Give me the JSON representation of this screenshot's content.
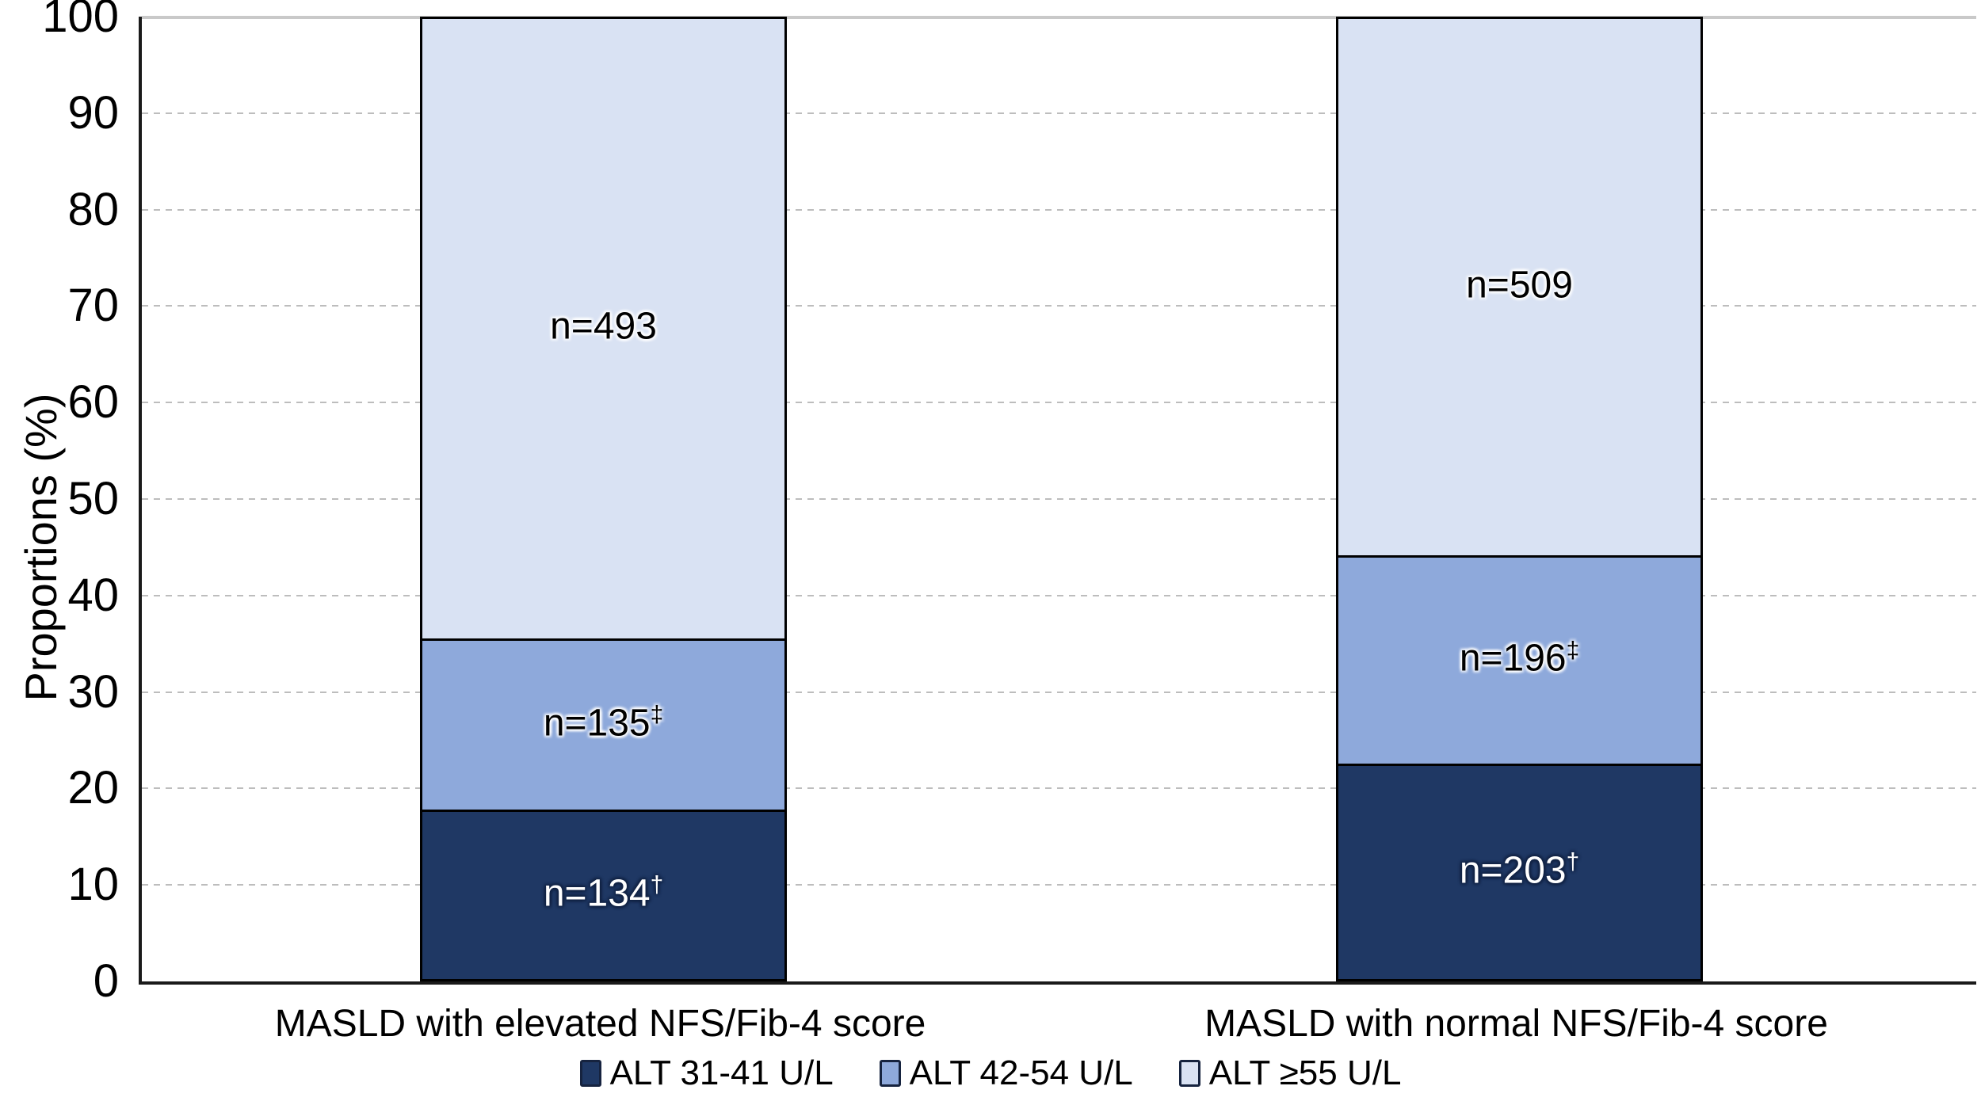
{
  "chart_data": {
    "type": "bar",
    "variant": "stacked-100pct",
    "title": "",
    "ylabel": "Proportions (%)",
    "xlabel": "",
    "ylim": [
      0,
      100
    ],
    "yticks": [
      0,
      10,
      20,
      30,
      40,
      50,
      60,
      70,
      80,
      90,
      100
    ],
    "grid": "horizontal, dashed at 10-90, solid at 100",
    "legend_position": "bottom",
    "categories": [
      "MASLD with elevated NFS/Fib-4 score",
      "MASLD with normal NFS/Fib-4 score"
    ],
    "series": [
      {
        "name": "ALT 31-41 U/L",
        "color": "#1F3864",
        "label_style": "white-on-dark",
        "values": [
          134,
          203
        ],
        "labels": [
          "n=134",
          "n=203"
        ],
        "label_suffix": "†"
      },
      {
        "name": "ALT 42-54 U/L",
        "color": "#8EA9DB",
        "label_style": "black-on-light",
        "values": [
          135,
          196
        ],
        "labels": [
          "n=135",
          "n=196"
        ],
        "label_suffix": "‡"
      },
      {
        "name": "ALT ≥55 U/L",
        "color": "#D9E2F3",
        "label_style": "black-on-light",
        "values": [
          493,
          509
        ],
        "labels": [
          "n=493",
          "n=509"
        ],
        "label_suffix": ""
      }
    ]
  },
  "legend": {
    "items": [
      {
        "label": "ALT 31-41 U/L",
        "color": "#1F3864"
      },
      {
        "label": "ALT 42-54 U/L",
        "color": "#8EA9DB"
      },
      {
        "label": "ALT ≥55 U/L",
        "color": "#D9E2F3"
      }
    ]
  },
  "axes": {
    "y_title": "Proportions (%)"
  }
}
